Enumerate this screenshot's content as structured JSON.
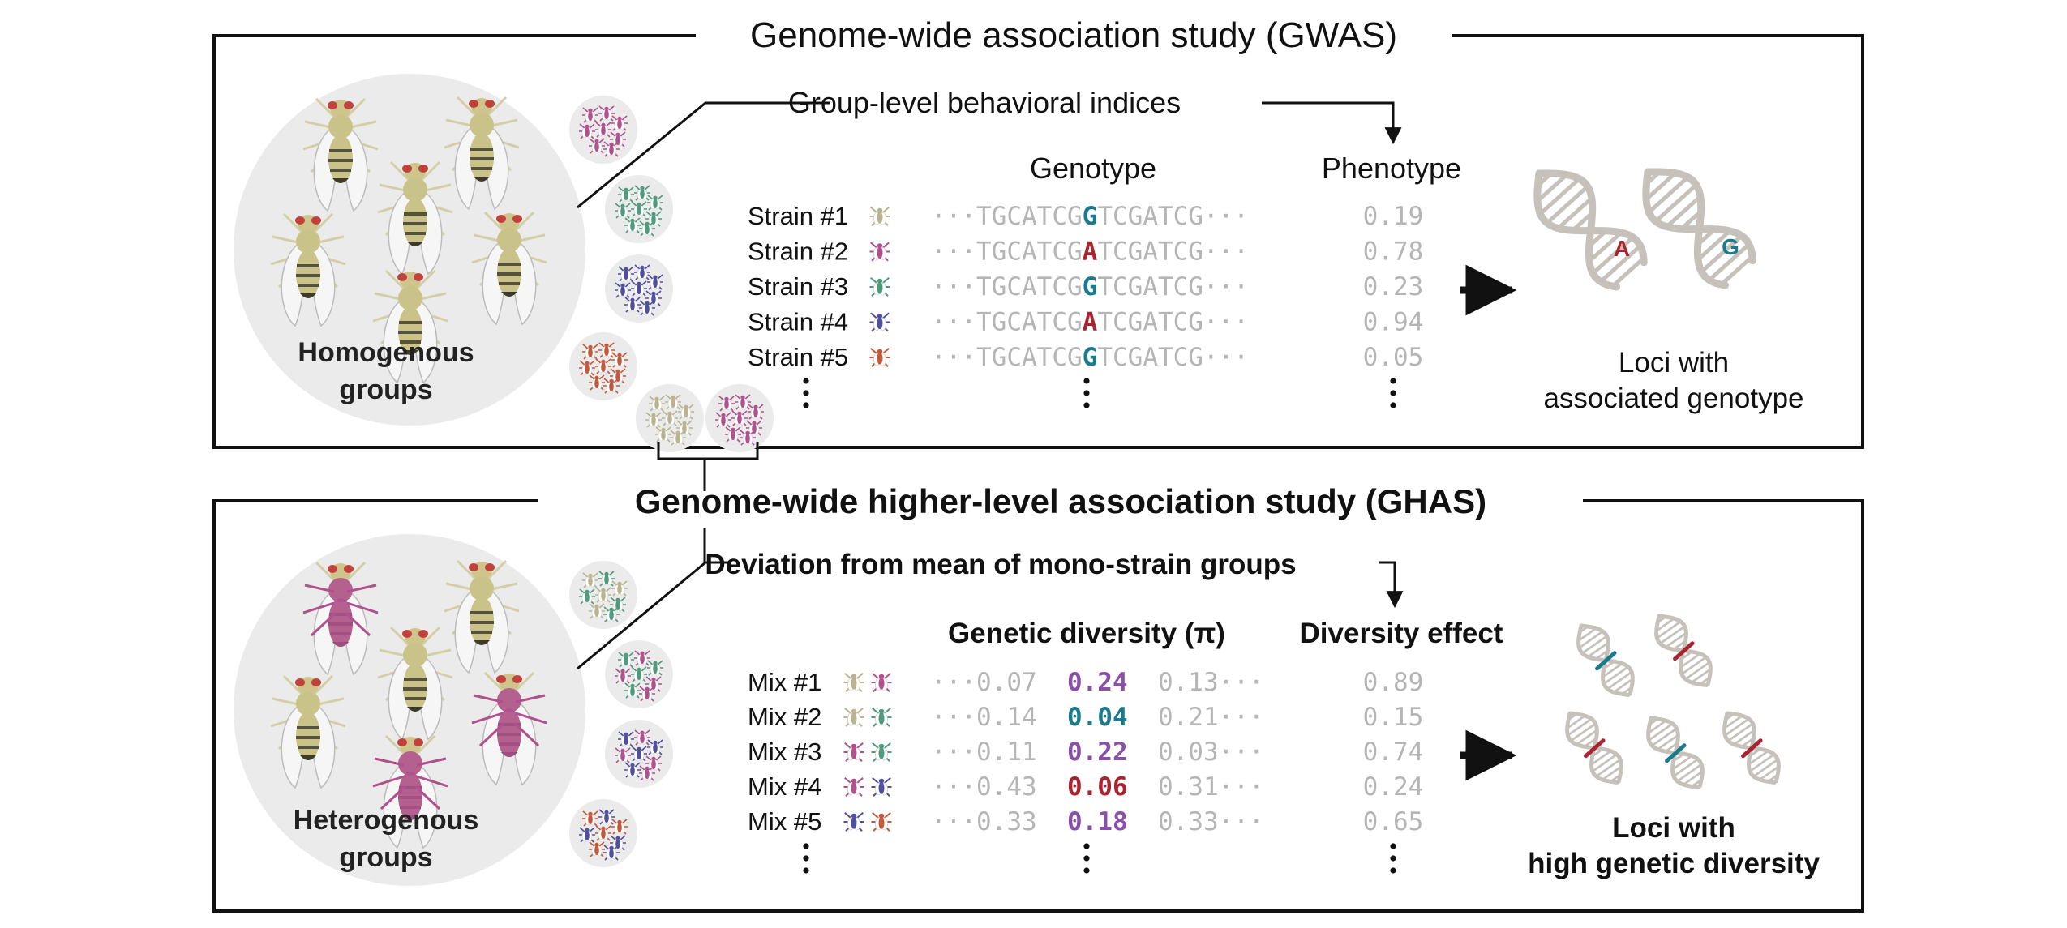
{
  "gwas": {
    "title": "Genome-wide association study (GWAS)",
    "index_label": "Group-level behavioral indices",
    "circle_label": [
      "Homogenous",
      "groups"
    ],
    "genotype_header": "Genotype",
    "phenotype_header": "Phenotype",
    "rows": [
      {
        "label": "Strain #1",
        "left": "TGCATCG",
        "snp": "G",
        "right": "TCGATCG",
        "value": "0.19",
        "snp_color": "#1b7a8c",
        "fly_color": "#b9b48f"
      },
      {
        "label": "Strain #2",
        "left": "TGCATCG",
        "snp": "A",
        "right": "TCGATCG",
        "value": "0.78",
        "snp_color": "#a8252f",
        "fly_color": "#b0508f"
      },
      {
        "label": "Strain #3",
        "left": "TGCATCG",
        "snp": "G",
        "right": "TCGATCG",
        "value": "0.23",
        "snp_color": "#1b7a8c",
        "fly_color": "#4e9a7c"
      },
      {
        "label": "Strain #4",
        "left": "TGCATCG",
        "snp": "A",
        "right": "TCGATCG",
        "value": "0.94",
        "snp_color": "#a8252f",
        "fly_color": "#4f4f9e"
      },
      {
        "label": "Strain #5",
        "left": "TGCATCG",
        "snp": "G",
        "right": "TCGATCG",
        "value": "0.05",
        "snp_color": "#1b7a8c",
        "fly_color": "#c4583a"
      }
    ],
    "dna_letters": [
      "A",
      "G"
    ],
    "result": [
      "Loci with",
      "associated genotype"
    ]
  },
  "ghas": {
    "title": "Genome-wide higher-level association study (GHAS)",
    "index_label": "Deviation from mean of mono-strain groups",
    "circle_label": [
      "Heterogenous",
      "groups"
    ],
    "diversity_header": "Genetic diversity (π)",
    "effect_header": "Diversity effect",
    "rows": [
      {
        "label": "Mix #1",
        "left": "0.07",
        "mid": "0.24",
        "right": "0.13",
        "effect": "0.89",
        "mid_color": "#8a4fa6",
        "fly_a": "#b9b48f",
        "fly_b": "#b0508f"
      },
      {
        "label": "Mix #2",
        "left": "0.14",
        "mid": "0.04",
        "right": "0.21",
        "effect": "0.15",
        "mid_color": "#1b7a8c",
        "fly_a": "#b9b48f",
        "fly_b": "#4e9a7c"
      },
      {
        "label": "Mix #3",
        "left": "0.11",
        "mid": "0.22",
        "right": "0.03",
        "effect": "0.74",
        "mid_color": "#8a4fa6",
        "fly_a": "#b0508f",
        "fly_b": "#4e9a7c"
      },
      {
        "label": "Mix #4",
        "left": "0.43",
        "mid": "0.06",
        "right": "0.31",
        "effect": "0.24",
        "mid_color": "#a8252f",
        "fly_a": "#b0508f",
        "fly_b": "#4f4f9e"
      },
      {
        "label": "Mix #5",
        "left": "0.33",
        "mid": "0.18",
        "right": "0.33",
        "effect": "0.65",
        "mid_color": "#8a4fa6",
        "fly_a": "#4f4f9e",
        "fly_b": "#c4583a"
      }
    ],
    "result": [
      "Loci with",
      "high genetic diversity"
    ]
  },
  "ellipsis": "···",
  "colors": {
    "frame": "#111111",
    "circle_fill": "#ebebeb",
    "gray_text": "#b5b5b5",
    "dna": "#c6c1bb",
    "fly_body": "#c9c38a",
    "strain_colors": [
      "#b9b48f",
      "#b0508f",
      "#4e9a7c",
      "#4f4f9e",
      "#c4583a"
    ]
  }
}
